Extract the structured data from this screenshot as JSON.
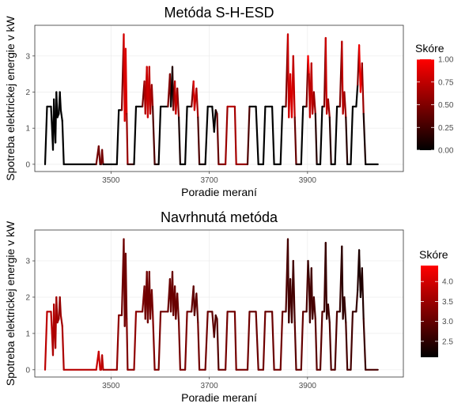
{
  "colors": {
    "low": "#000000",
    "high": "#ff0000",
    "axis_text": "#4d4d4d",
    "panel_border": "#333333",
    "grid": "#ebebeb"
  },
  "chart_data": [
    {
      "type": "line",
      "title": "Metóda S-H-ESD",
      "xlabel": "Poradie meraní",
      "ylabel": "Spotreba elektrickej energie v kW",
      "x_ticks": [
        3500,
        3700,
        3900
      ],
      "y_ticks": [
        0,
        1,
        2,
        3
      ],
      "xlim": [
        3345,
        4095
      ],
      "ylim": [
        -0.2,
        3.85
      ],
      "legend": {
        "title": "Skóre",
        "min": 0,
        "max": 1,
        "ticks": [
          0.0,
          0.25,
          0.5,
          0.75,
          1.0
        ],
        "tick_labels": [
          "0.00",
          "0.25",
          "0.50",
          "0.75",
          "1.00"
        ],
        "placement": "right"
      },
      "points": [
        [
          3366,
          0,
          0
        ],
        [
          3370,
          1.6,
          0
        ],
        [
          3378,
          1.6,
          0
        ],
        [
          3382,
          0.4,
          0
        ],
        [
          3384,
          1.8,
          0
        ],
        [
          3387,
          0.6,
          0
        ],
        [
          3389,
          2.0,
          0
        ],
        [
          3391,
          1.3,
          0
        ],
        [
          3394,
          1.4,
          0
        ],
        [
          3396,
          2.0,
          0
        ],
        [
          3398,
          1.5,
          0
        ],
        [
          3401,
          1.2,
          0
        ],
        [
          3404,
          0,
          0
        ],
        [
          3470,
          0,
          0
        ],
        [
          3475,
          0.5,
          0.9
        ],
        [
          3478,
          0,
          0
        ],
        [
          3480,
          0,
          0
        ],
        [
          3482,
          0.4,
          0.9
        ],
        [
          3484,
          0,
          0
        ],
        [
          3512,
          0,
          0
        ],
        [
          3516,
          1.5,
          0
        ],
        [
          3522,
          1.5,
          0
        ],
        [
          3526,
          3.6,
          1
        ],
        [
          3528,
          1.2,
          0.7
        ],
        [
          3530,
          3.2,
          1
        ],
        [
          3532,
          1.4,
          0.7
        ],
        [
          3534,
          0,
          0.5
        ],
        [
          3547,
          0,
          0
        ],
        [
          3551,
          1.6,
          0
        ],
        [
          3564,
          1.6,
          0
        ],
        [
          3568,
          2.3,
          0.9
        ],
        [
          3570,
          1.4,
          0.4
        ],
        [
          3573,
          2.7,
          1
        ],
        [
          3575,
          1.3,
          0.6
        ],
        [
          3578,
          2.7,
          1
        ],
        [
          3580,
          1.4,
          0.5
        ],
        [
          3583,
          2.2,
          0.9
        ],
        [
          3585,
          1.6,
          0.3
        ],
        [
          3589,
          0,
          0.3
        ],
        [
          3597,
          0,
          0
        ],
        [
          3601,
          1.6,
          0
        ],
        [
          3616,
          1.6,
          0
        ],
        [
          3620,
          2.5,
          1
        ],
        [
          3622,
          1.6,
          0
        ],
        [
          3625,
          2.7,
          0
        ],
        [
          3627,
          1.5,
          0.3
        ],
        [
          3630,
          2.3,
          0.8
        ],
        [
          3632,
          1.4,
          0.7
        ],
        [
          3635,
          2.1,
          0.9
        ],
        [
          3638,
          1.3,
          0.2
        ],
        [
          3641,
          0,
          0
        ],
        [
          3651,
          0,
          0
        ],
        [
          3655,
          1.6,
          0
        ],
        [
          3664,
          1.6,
          0
        ],
        [
          3668,
          2.3,
          1
        ],
        [
          3670,
          1.5,
          0.7
        ],
        [
          3674,
          2.1,
          0.9
        ],
        [
          3677,
          1.3,
          0.4
        ],
        [
          3680,
          0,
          0.2
        ],
        [
          3692,
          0,
          0
        ],
        [
          3697,
          1.6,
          0
        ],
        [
          3706,
          1.6,
          0
        ],
        [
          3710,
          0.9,
          0
        ],
        [
          3713,
          1.5,
          0
        ],
        [
          3716,
          1.4,
          0.3
        ],
        [
          3719,
          0,
          0.5
        ],
        [
          3733,
          0,
          0.5
        ],
        [
          3737,
          1.6,
          0.7
        ],
        [
          3752,
          1.6,
          0.7
        ],
        [
          3755,
          0,
          0.6
        ],
        [
          3778,
          0,
          0.6
        ],
        [
          3782,
          1.6,
          0
        ],
        [
          3795,
          1.6,
          0
        ],
        [
          3800,
          0,
          0
        ],
        [
          3810,
          0,
          0
        ],
        [
          3814,
          1.6,
          0
        ],
        [
          3828,
          1.6,
          0
        ],
        [
          3832,
          0,
          0
        ],
        [
          3845,
          0,
          0
        ],
        [
          3849,
          1.6,
          0
        ],
        [
          3856,
          1.6,
          0
        ],
        [
          3860,
          3.6,
          1
        ],
        [
          3862,
          1.3,
          0.6
        ],
        [
          3865,
          2.5,
          1
        ],
        [
          3868,
          1.3,
          0.7
        ],
        [
          3871,
          3.0,
          1
        ],
        [
          3874,
          1.3,
          0.5
        ],
        [
          3877,
          0,
          0.3
        ],
        [
          3887,
          0,
          0
        ],
        [
          3891,
          1.6,
          0
        ],
        [
          3898,
          1.6,
          0
        ],
        [
          3901,
          3.0,
          1
        ],
        [
          3903,
          2.5,
          1
        ],
        [
          3905,
          1.3,
          0.5
        ],
        [
          3908,
          2.8,
          1
        ],
        [
          3910,
          1.4,
          0.5
        ],
        [
          3913,
          2.0,
          0.9
        ],
        [
          3916,
          1.4,
          0.3
        ],
        [
          3919,
          0,
          0
        ],
        [
          3926,
          0,
          0
        ],
        [
          3930,
          1.6,
          0
        ],
        [
          3934,
          1.6,
          0
        ],
        [
          3937,
          3.5,
          1
        ],
        [
          3939,
          1.4,
          0.6
        ],
        [
          3942,
          1.8,
          0.9
        ],
        [
          3945,
          1.3,
          0.3
        ],
        [
          3948,
          0,
          0
        ],
        [
          3956,
          0,
          0
        ],
        [
          3960,
          1.6,
          0
        ],
        [
          3966,
          1.6,
          0
        ],
        [
          3970,
          3.4,
          1
        ],
        [
          3972,
          1.4,
          0.5
        ],
        [
          3975,
          2.0,
          0.9
        ],
        [
          3978,
          1.3,
          0.3
        ],
        [
          3981,
          0,
          0
        ],
        [
          3988,
          0,
          0
        ],
        [
          3992,
          1.6,
          0
        ],
        [
          3999,
          1.6,
          0
        ],
        [
          4002,
          2.2,
          0
        ],
        [
          4005,
          3.3,
          1
        ],
        [
          4008,
          2.0,
          0.9
        ],
        [
          4011,
          2.8,
          1
        ],
        [
          4014,
          1.4,
          0.2
        ],
        [
          4018,
          0,
          0
        ],
        [
          4043,
          0,
          0
        ]
      ]
    },
    {
      "type": "line",
      "title": "Navrhnutá metóda",
      "xlabel": "Poradie meraní",
      "ylabel": "Spotreba elektrickej energie v kW",
      "x_ticks": [
        3500,
        3700,
        3900
      ],
      "y_ticks": [
        0,
        1,
        2,
        3
      ],
      "xlim": [
        3345,
        4095
      ],
      "ylim": [
        -0.2,
        3.85
      ],
      "legend": {
        "title": "Skóre",
        "min": 2.1,
        "max": 4.4,
        "ticks": [
          2.5,
          3.0,
          3.5,
          4.0
        ],
        "tick_labels": [
          "2.5",
          "3.0",
          "3.5",
          "4.0"
        ],
        "placement": "right"
      },
      "points": [
        [
          3366,
          0,
          3.9
        ],
        [
          3370,
          1.6,
          3.7
        ],
        [
          3378,
          1.6,
          3.8
        ],
        [
          3382,
          0.4,
          3.7
        ],
        [
          3384,
          1.8,
          3.6
        ],
        [
          3387,
          0.6,
          3.8
        ],
        [
          3389,
          2.0,
          3.5
        ],
        [
          3391,
          1.3,
          3.6
        ],
        [
          3394,
          1.4,
          3.5
        ],
        [
          3396,
          2.0,
          3.4
        ],
        [
          3398,
          1.5,
          3.5
        ],
        [
          3401,
          1.2,
          3.6
        ],
        [
          3404,
          0,
          3.7
        ],
        [
          3470,
          0,
          3.8
        ],
        [
          3475,
          0.5,
          4.0
        ],
        [
          3478,
          0,
          3.8
        ],
        [
          3480,
          0,
          3.8
        ],
        [
          3482,
          0.4,
          3.9
        ],
        [
          3484,
          0,
          3.6
        ],
        [
          3512,
          0,
          3.5
        ],
        [
          3516,
          1.5,
          3.3
        ],
        [
          3522,
          1.5,
          3.2
        ],
        [
          3526,
          3.6,
          3.0
        ],
        [
          3528,
          1.2,
          3.2
        ],
        [
          3530,
          3.2,
          3.0
        ],
        [
          3532,
          1.4,
          3.2
        ],
        [
          3534,
          0,
          3.3
        ],
        [
          3547,
          0,
          3.5
        ],
        [
          3551,
          1.6,
          3.3
        ],
        [
          3564,
          1.6,
          3.3
        ],
        [
          3568,
          2.3,
          3.1
        ],
        [
          3570,
          1.4,
          3.2
        ],
        [
          3573,
          2.7,
          3.0
        ],
        [
          3575,
          1.3,
          3.2
        ],
        [
          3578,
          2.7,
          3.0
        ],
        [
          3580,
          1.4,
          3.2
        ],
        [
          3583,
          2.2,
          3.1
        ],
        [
          3585,
          1.6,
          3.2
        ],
        [
          3589,
          0,
          3.3
        ],
        [
          3597,
          0,
          3.3
        ],
        [
          3601,
          1.6,
          3.1
        ],
        [
          3616,
          1.6,
          3.1
        ],
        [
          3620,
          2.5,
          3.0
        ],
        [
          3622,
          1.6,
          3.1
        ],
        [
          3625,
          2.7,
          3.0
        ],
        [
          3627,
          1.5,
          3.1
        ],
        [
          3630,
          2.3,
          3.0
        ],
        [
          3632,
          1.4,
          3.1
        ],
        [
          3635,
          2.1,
          3.0
        ],
        [
          3638,
          1.3,
          3.1
        ],
        [
          3641,
          0,
          3.2
        ],
        [
          3651,
          0,
          3.3
        ],
        [
          3655,
          1.6,
          3.1
        ],
        [
          3664,
          1.6,
          3.1
        ],
        [
          3668,
          2.3,
          2.9
        ],
        [
          3670,
          1.5,
          3.0
        ],
        [
          3674,
          2.1,
          2.9
        ],
        [
          3677,
          1.3,
          3.0
        ],
        [
          3680,
          0,
          3.2
        ],
        [
          3692,
          0,
          3.2
        ],
        [
          3697,
          1.6,
          3.0
        ],
        [
          3706,
          1.6,
          3.0
        ],
        [
          3710,
          0.9,
          2.9
        ],
        [
          3713,
          1.5,
          2.8
        ],
        [
          3716,
          1.4,
          2.7
        ],
        [
          3719,
          0,
          3.0
        ],
        [
          3733,
          0,
          3.2
        ],
        [
          3737,
          1.6,
          3.1
        ],
        [
          3752,
          1.6,
          3.1
        ],
        [
          3755,
          0,
          3.2
        ],
        [
          3778,
          0,
          3.2
        ],
        [
          3782,
          1.6,
          3.0
        ],
        [
          3795,
          1.6,
          3.0
        ],
        [
          3800,
          0,
          3.1
        ],
        [
          3810,
          0,
          3.2
        ],
        [
          3814,
          1.6,
          3.0
        ],
        [
          3828,
          1.6,
          3.0
        ],
        [
          3832,
          0,
          3.1
        ],
        [
          3845,
          0,
          3.2
        ],
        [
          3849,
          1.6,
          3.0
        ],
        [
          3856,
          1.6,
          3.0
        ],
        [
          3860,
          3.6,
          2.6
        ],
        [
          3862,
          1.3,
          2.8
        ],
        [
          3865,
          2.5,
          2.6
        ],
        [
          3868,
          1.3,
          2.8
        ],
        [
          3871,
          3.0,
          2.6
        ],
        [
          3874,
          1.3,
          2.8
        ],
        [
          3877,
          0,
          3.0
        ],
        [
          3887,
          0,
          3.1
        ],
        [
          3891,
          1.6,
          2.9
        ],
        [
          3898,
          1.6,
          2.9
        ],
        [
          3901,
          3.0,
          2.6
        ],
        [
          3903,
          2.5,
          2.6
        ],
        [
          3905,
          1.3,
          2.8
        ],
        [
          3908,
          2.8,
          2.6
        ],
        [
          3910,
          1.4,
          2.8
        ],
        [
          3913,
          2.0,
          2.7
        ],
        [
          3916,
          1.4,
          2.8
        ],
        [
          3919,
          0,
          3.0
        ],
        [
          3926,
          0,
          3.0
        ],
        [
          3930,
          1.6,
          2.8
        ],
        [
          3934,
          1.6,
          2.8
        ],
        [
          3937,
          3.5,
          2.5
        ],
        [
          3939,
          1.4,
          2.7
        ],
        [
          3942,
          1.8,
          2.6
        ],
        [
          3945,
          1.3,
          2.7
        ],
        [
          3948,
          0,
          2.9
        ],
        [
          3956,
          0,
          2.9
        ],
        [
          3960,
          1.6,
          2.7
        ],
        [
          3966,
          1.6,
          2.7
        ],
        [
          3970,
          3.4,
          2.4
        ],
        [
          3972,
          1.4,
          2.6
        ],
        [
          3975,
          2.0,
          2.5
        ],
        [
          3978,
          1.3,
          2.6
        ],
        [
          3981,
          0,
          2.8
        ],
        [
          3988,
          0,
          2.8
        ],
        [
          3992,
          1.6,
          2.6
        ],
        [
          3999,
          1.6,
          2.6
        ],
        [
          4002,
          2.2,
          2.5
        ],
        [
          4005,
          3.3,
          2.3
        ],
        [
          4008,
          2.0,
          2.4
        ],
        [
          4011,
          2.8,
          2.3
        ],
        [
          4014,
          1.4,
          2.5
        ],
        [
          4018,
          0,
          2.7
        ],
        [
          4043,
          0,
          2.8
        ]
      ]
    }
  ]
}
